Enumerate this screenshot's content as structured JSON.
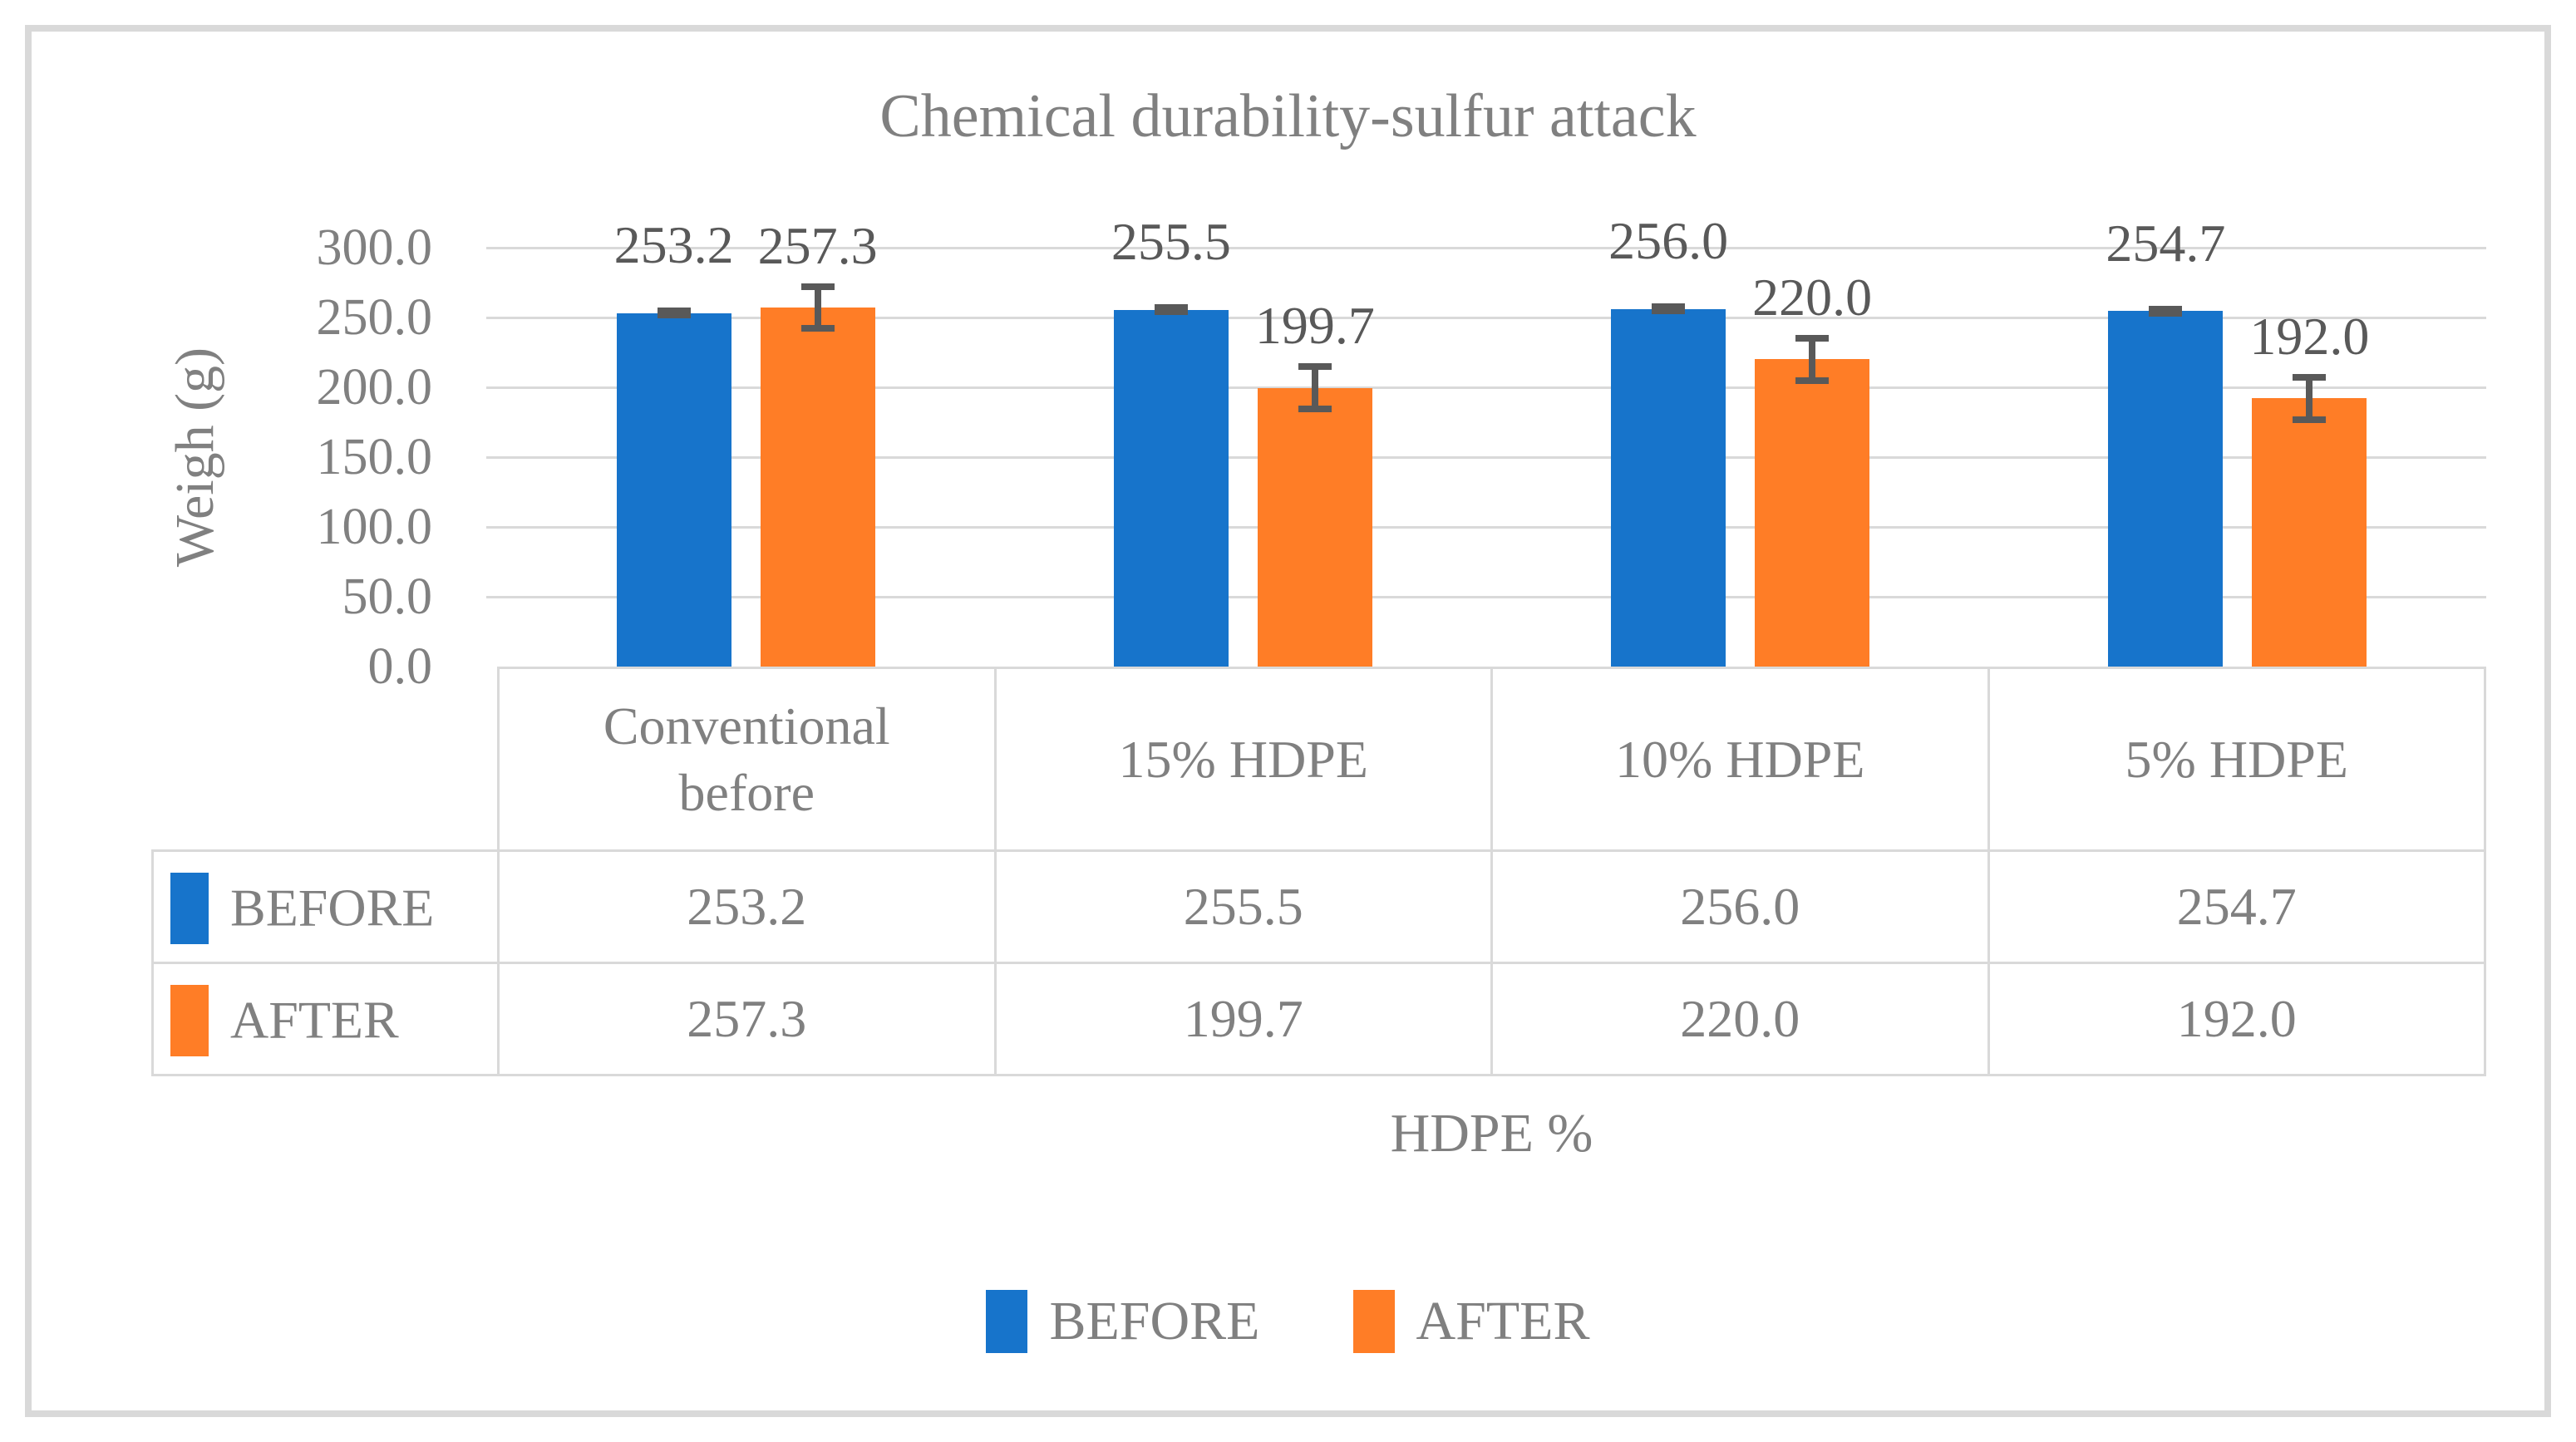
{
  "chart_data": {
    "type": "bar",
    "title": "Chemical durability-sulfur attack",
    "xlabel": "HDPE %",
    "ylabel": "Weigh (g)",
    "ylim": [
      0,
      300
    ],
    "y_ticks": [
      "300.0",
      "250.0",
      "200.0",
      "150.0",
      "100.0",
      "50.0",
      "0.0"
    ],
    "grid": true,
    "legend_position": "bottom",
    "data_table_shown": true,
    "categories": [
      "Conventional before",
      "15% HDPE",
      "10% HDPE",
      "5% HDPE"
    ],
    "series": [
      {
        "name": "BEFORE",
        "color": "#1774CB",
        "values": [
          253.2,
          255.5,
          256.0,
          254.7
        ],
        "labels": [
          "253.2",
          "255.5",
          "256.0",
          "254.7"
        ],
        "error": [
          1.5,
          1.5,
          1.5,
          1.5
        ]
      },
      {
        "name": "AFTER",
        "color": "#FF7D26",
        "values": [
          257.3,
          199.7,
          220.0,
          192.0
        ],
        "labels": [
          "257.3",
          "199.7",
          "220.0",
          "192.0"
        ],
        "error": [
          15,
          15,
          15,
          15
        ]
      }
    ],
    "colors": {
      "gridline": "#D9D9D9",
      "frame": "#D9D9D9",
      "axis_text": "#808080",
      "label_text": "#595959",
      "error_bar": "#595959",
      "background": "#FFFFFF"
    }
  }
}
